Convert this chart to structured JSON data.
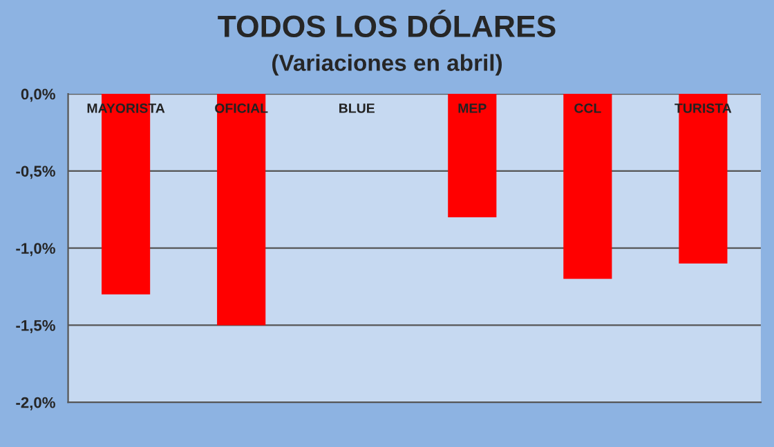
{
  "chart_data": {
    "type": "bar",
    "title": "TODOS LOS DÓLARES",
    "subtitle": "(Variaciones en abril)",
    "categories": [
      "MAYORISTA",
      "OFICIAL",
      "BLUE",
      "MEP",
      "CCL",
      "TURISTA"
    ],
    "values": [
      -1.3,
      -1.5,
      0,
      -0.8,
      -1.2,
      -1.1
    ],
    "color": "#ff0000",
    "ylim": [
      -2.0,
      0.0
    ],
    "yticks": [
      {
        "value": -2.0,
        "label": "-2,0%"
      },
      {
        "value": -1.5,
        "label": "-1,5%"
      },
      {
        "value": -1.0,
        "label": "-1,0%"
      },
      {
        "value": -0.5,
        "label": "-0,5%"
      },
      {
        "value": 0.0,
        "label": "0,0%"
      }
    ],
    "grid": "y",
    "legend": false
  }
}
